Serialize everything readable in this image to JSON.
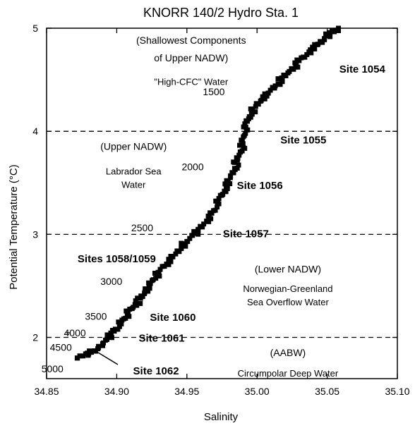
{
  "chart_data": {
    "type": "scatter",
    "title": "KNORR 140/2 Hydro Sta. 1",
    "xlabel": "Salinity",
    "ylabel": "Potential Temperature (°C)",
    "xlim": [
      34.85,
      35.1
    ],
    "ylim": [
      1.6,
      5.0
    ],
    "xticks": [
      "34.85",
      "34.90",
      "34.95",
      "35.00",
      "35.05",
      "35.10"
    ],
    "yticks": [
      "2",
      "3",
      "4",
      "5"
    ],
    "grid": false,
    "reference_lines": [
      {
        "y": 4.0,
        "style": "dashed"
      },
      {
        "y": 3.0,
        "style": "dashed"
      },
      {
        "y": 2.0,
        "style": "dashed"
      }
    ],
    "series": [
      {
        "marker": "filled-square",
        "color": "#000000",
        "x": [
          34.872,
          34.876,
          34.88,
          34.884,
          34.887,
          34.89,
          34.893,
          34.896,
          34.899,
          34.902,
          34.905,
          34.908,
          34.911,
          34.914,
          34.917,
          34.92,
          34.923,
          34.926,
          34.93,
          34.934,
          34.938,
          34.942,
          34.946,
          34.95,
          34.954,
          34.958,
          34.962,
          34.966,
          34.969,
          34.972,
          34.975,
          34.978,
          34.981,
          34.984,
          34.986,
          34.988,
          34.99,
          34.991,
          34.992,
          34.994,
          34.996,
          34.999,
          35.003,
          35.008,
          35.013,
          35.018,
          35.023,
          35.028,
          35.033,
          35.038,
          35.043,
          35.048,
          35.052,
          35.056,
          35.058
        ],
        "y": [
          1.8,
          1.82,
          1.84,
          1.87,
          1.9,
          1.94,
          1.98,
          2.03,
          2.08,
          2.13,
          2.18,
          2.23,
          2.28,
          2.33,
          2.38,
          2.44,
          2.5,
          2.56,
          2.63,
          2.69,
          2.75,
          2.81,
          2.87,
          2.93,
          2.99,
          3.04,
          3.1,
          3.16,
          3.23,
          3.3,
          3.38,
          3.46,
          3.55,
          3.64,
          3.72,
          3.8,
          3.88,
          3.96,
          4.04,
          4.12,
          4.18,
          4.24,
          4.3,
          4.37,
          4.44,
          4.51,
          4.58,
          4.65,
          4.72,
          4.78,
          4.84,
          4.9,
          4.95,
          4.98,
          5.0
        ]
      }
    ],
    "annotations": [
      {
        "text": "(Shallowest Components",
        "x": 34.953,
        "y": 4.85,
        "style": "normal"
      },
      {
        "text": "of Upper NADW)",
        "x": 34.953,
        "y": 4.68,
        "style": "normal"
      },
      {
        "text": "\"High-CFC\" Water",
        "x": 34.953,
        "y": 4.45,
        "style": "small"
      },
      {
        "text": "(Upper NADW)",
        "x": 34.912,
        "y": 3.82,
        "style": "normal"
      },
      {
        "text": "Labrador Sea",
        "x": 34.912,
        "y": 3.58,
        "style": "small"
      },
      {
        "text": "Water",
        "x": 34.912,
        "y": 3.45,
        "style": "small"
      },
      {
        "text": "(Lower NADW)",
        "x": 35.022,
        "y": 2.63,
        "style": "normal"
      },
      {
        "text": "Norwegian-Greenland",
        "x": 35.022,
        "y": 2.44,
        "style": "small"
      },
      {
        "text": "Sea Overflow Water",
        "x": 35.022,
        "y": 2.31,
        "style": "small"
      },
      {
        "text": "(AABW)",
        "x": 35.022,
        "y": 1.82,
        "style": "normal"
      },
      {
        "text": "Circumpolar Deep Water",
        "x": 35.022,
        "y": 1.62,
        "style": "small"
      },
      {
        "text": "Site 1054",
        "x": 35.075,
        "y": 4.57,
        "style": "bold"
      },
      {
        "text": "Site 1055",
        "x": 35.033,
        "y": 3.88,
        "style": "bold"
      },
      {
        "text": "Site 1056",
        "x": 35.002,
        "y": 3.44,
        "style": "bold"
      },
      {
        "text": "Site 1057",
        "x": 34.992,
        "y": 2.97,
        "style": "bold"
      },
      {
        "text": "Sites 1058/1059",
        "x": 34.9,
        "y": 2.73,
        "style": "bold"
      },
      {
        "text": "Site 1060",
        "x": 34.94,
        "y": 2.16,
        "style": "bold"
      },
      {
        "text": "Site 1061",
        "x": 34.932,
        "y": 1.96,
        "style": "bold"
      },
      {
        "text": "Site 1062",
        "x": 34.928,
        "y": 1.64,
        "style": "bold"
      }
    ],
    "depth_labels": [
      {
        "text": "1500",
        "x": 34.977,
        "y": 4.35
      },
      {
        "text": "2000",
        "x": 34.962,
        "y": 3.62
      },
      {
        "text": "2500",
        "x": 34.926,
        "y": 3.03
      },
      {
        "text": "3000",
        "x": 34.904,
        "y": 2.51
      },
      {
        "text": "3500",
        "x": 34.893,
        "y": 2.17
      },
      {
        "text": "4000",
        "x": 34.878,
        "y": 2.01
      },
      {
        "text": "4500",
        "x": 34.868,
        "y": 1.87
      },
      {
        "text": "5000",
        "x": 34.862,
        "y": 1.66
      }
    ]
  }
}
